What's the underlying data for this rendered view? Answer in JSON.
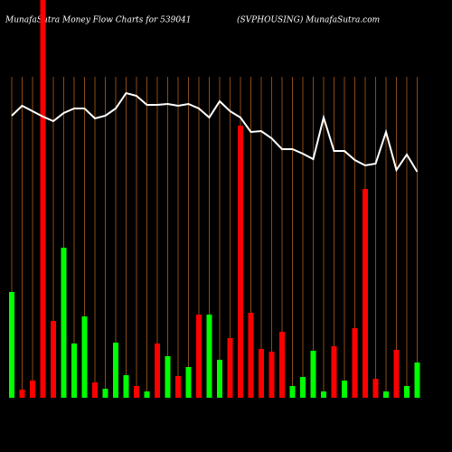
{
  "chart_data": {
    "type": "bar",
    "title": "MunafaSutra  Money Flow  Charts for 539041",
    "subtitle": "(SVPHOUSING) MunafaSutra.com",
    "categories": [
      null,
      null,
      null,
      null,
      null,
      null,
      null,
      null,
      null,
      null,
      null,
      null,
      null,
      null,
      null,
      null,
      null,
      null,
      null,
      null,
      null,
      null,
      null,
      null,
      null,
      null,
      null,
      null,
      null,
      null,
      null,
      null,
      null,
      null,
      null,
      null,
      null,
      null,
      null,
      null
    ],
    "values": [
      117,
      9,
      19,
      440,
      85,
      166,
      60,
      90,
      17,
      10,
      61,
      25,
      13,
      7,
      60,
      46,
      24,
      34,
      92,
      92,
      42,
      66,
      301,
      94,
      54,
      51,
      73,
      13,
      23,
      52,
      7,
      57,
      19,
      77,
      231,
      21,
      7,
      53,
      13,
      39
    ],
    "colors": [
      "#00ff00",
      "#ff0000",
      "#ff0000",
      "#ff0000",
      "#ff0000",
      "#00ff00",
      "#00ff00",
      "#00ff00",
      "#ff0000",
      "#00ff00",
      "#00ff00",
      "#00ff00",
      "#ff0000",
      "#00ff00",
      "#ff0000",
      "#00ff00",
      "#ff0000",
      "#00ff00",
      "#ff0000",
      "#00ff00",
      "#00ff00",
      "#ff0000",
      "#ff0000",
      "#ff0000",
      "#ff0000",
      "#ff0000",
      "#ff0000",
      "#00ff00",
      "#00ff00",
      "#00ff00",
      "#00ff00",
      "#ff0000",
      "#00ff00",
      "#ff0000",
      "#ff0000",
      "#ff0000",
      "#00ff00",
      "#ff0000",
      "#00ff00",
      "#00ff00"
    ],
    "line": {
      "color": "#ffffff",
      "values": [
        312,
        323,
        317,
        311,
        306,
        315,
        320,
        320,
        309,
        312,
        320,
        337,
        334,
        324,
        324,
        325,
        323,
        325,
        320,
        310,
        328,
        317,
        310,
        294,
        295,
        287,
        275,
        275,
        270,
        264,
        310,
        273,
        273,
        263,
        257,
        259,
        294,
        252,
        269,
        250
      ]
    },
    "ylim": [
      0,
      440
    ],
    "grid": true,
    "grid_color": "#8b4a14"
  }
}
